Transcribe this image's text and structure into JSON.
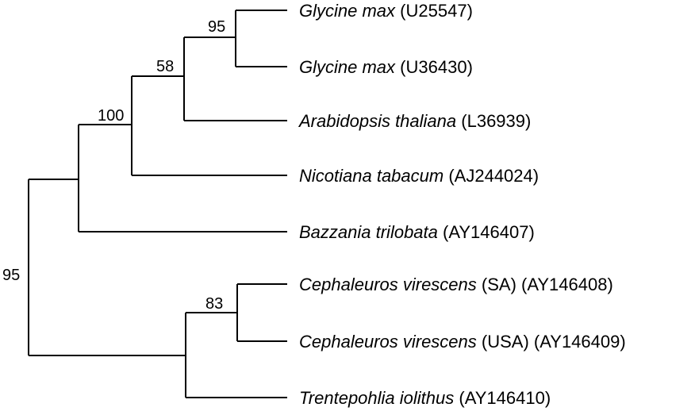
{
  "tree": {
    "taxa": [
      {
        "id": "t1",
        "species": "Glycine max",
        "accession": "(U25547)"
      },
      {
        "id": "t2",
        "species": "Glycine max",
        "accession": "(U36430)"
      },
      {
        "id": "t3",
        "species": "Arabidopsis thaliana",
        "accession": "(L36939)"
      },
      {
        "id": "t4",
        "species": "Nicotiana tabacum",
        "accession": "(AJ244024)"
      },
      {
        "id": "t5",
        "species": "Bazzania trilobata",
        "accession": "(AY146407)"
      },
      {
        "id": "t6",
        "species": "Cephaleuros virescens",
        "accession": "(SA) (AY146408)"
      },
      {
        "id": "t7",
        "species": "Cephaleuros virescens",
        "accession": "(USA) (AY146409)"
      },
      {
        "id": "t8",
        "species": "Trentepohlia iolithus",
        "accession": "(AY146410)"
      }
    ],
    "bootstrap": {
      "glycine_clade": "95",
      "glycine_arabidopsis": "58",
      "angiosperm_clade": "100",
      "root_split": "95",
      "cephaleuros_clade": "83"
    }
  }
}
